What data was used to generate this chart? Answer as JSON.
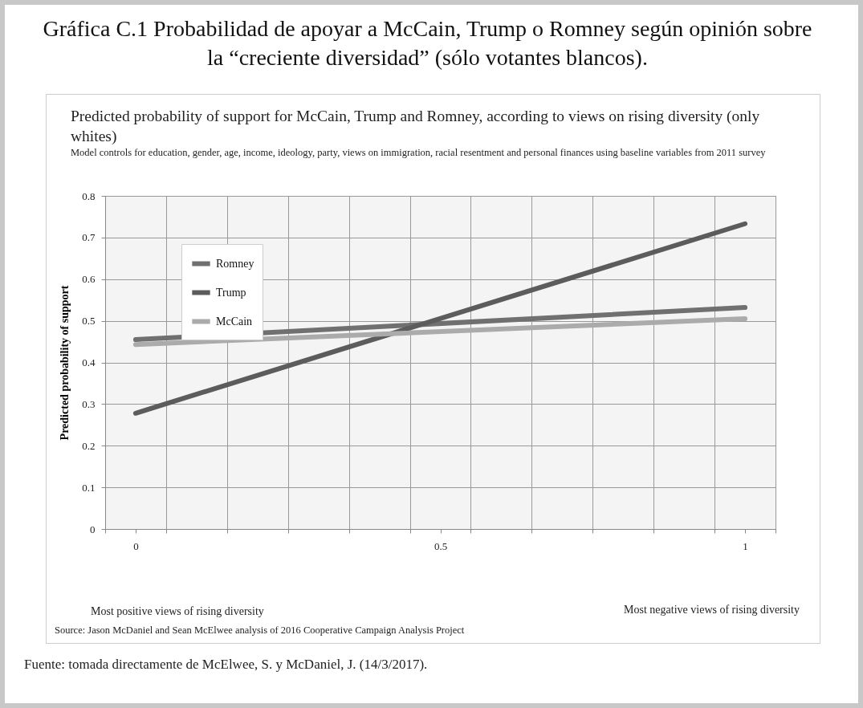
{
  "chart_data": {
    "type": "line",
    "title": "Gráfica C.1 Probabilidad de apoyar a McCain, Trump o Romney según opinión sobre la “creciente diversidad” (sólo votantes blancos).",
    "subtitle": "Predicted probability of support  for McCain, Trump and Romney, according to views on rising diversity (only whites)",
    "ylabel": "Predicted probability of support",
    "annotations": [
      "Model controls for education, gender, age, income, ideology, party, views on immigration, racial resentment and personal finances using baseline variables from 2011 survey",
      "Most positive views of rising diversity",
      "Most negative views of rising diversity",
      "Source: Jason McDaniel and Sean McElwee analysis of 2016 Cooperative Campaign Analysis Project",
      "Fuente: tomada directamente de McElwee, S. y McDaniel, J. (14/3/2017)."
    ],
    "x": [
      0,
      1
    ],
    "series": [
      {
        "name": "Romney",
        "color": "#707070",
        "values": [
          0.455,
          0.532
        ]
      },
      {
        "name": "Trump",
        "color": "#5c5c5c",
        "values": [
          0.278,
          0.733
        ]
      },
      {
        "name": "McCain",
        "color": "#ababab",
        "values": [
          0.443,
          0.505
        ]
      }
    ],
    "xlim": [
      -0.05,
      1.05
    ],
    "xticks": [
      {
        "value": -0.05,
        "label": null
      },
      0,
      {
        "value": 0.05,
        "label": null
      },
      {
        "value": 0.15,
        "label": null
      },
      {
        "value": 0.25,
        "label": null
      },
      {
        "value": 0.35,
        "label": null
      },
      {
        "value": 0.45,
        "label": null
      },
      0.5,
      {
        "value": 0.55,
        "label": null
      },
      {
        "value": 0.65,
        "label": null
      },
      {
        "value": 0.75,
        "label": null
      },
      {
        "value": 0.85,
        "label": null
      },
      {
        "value": 0.95,
        "label": null
      },
      1,
      {
        "value": 1.05,
        "label": null
      }
    ],
    "ylim": [
      0,
      0.8
    ],
    "yticks": [
      0,
      0.1,
      0.2,
      0.3,
      0.4,
      0.5,
      0.6,
      0.7,
      0.8
    ],
    "grid": true,
    "legend": "top left",
    "marker": "none",
    "line_style": "solid"
  }
}
